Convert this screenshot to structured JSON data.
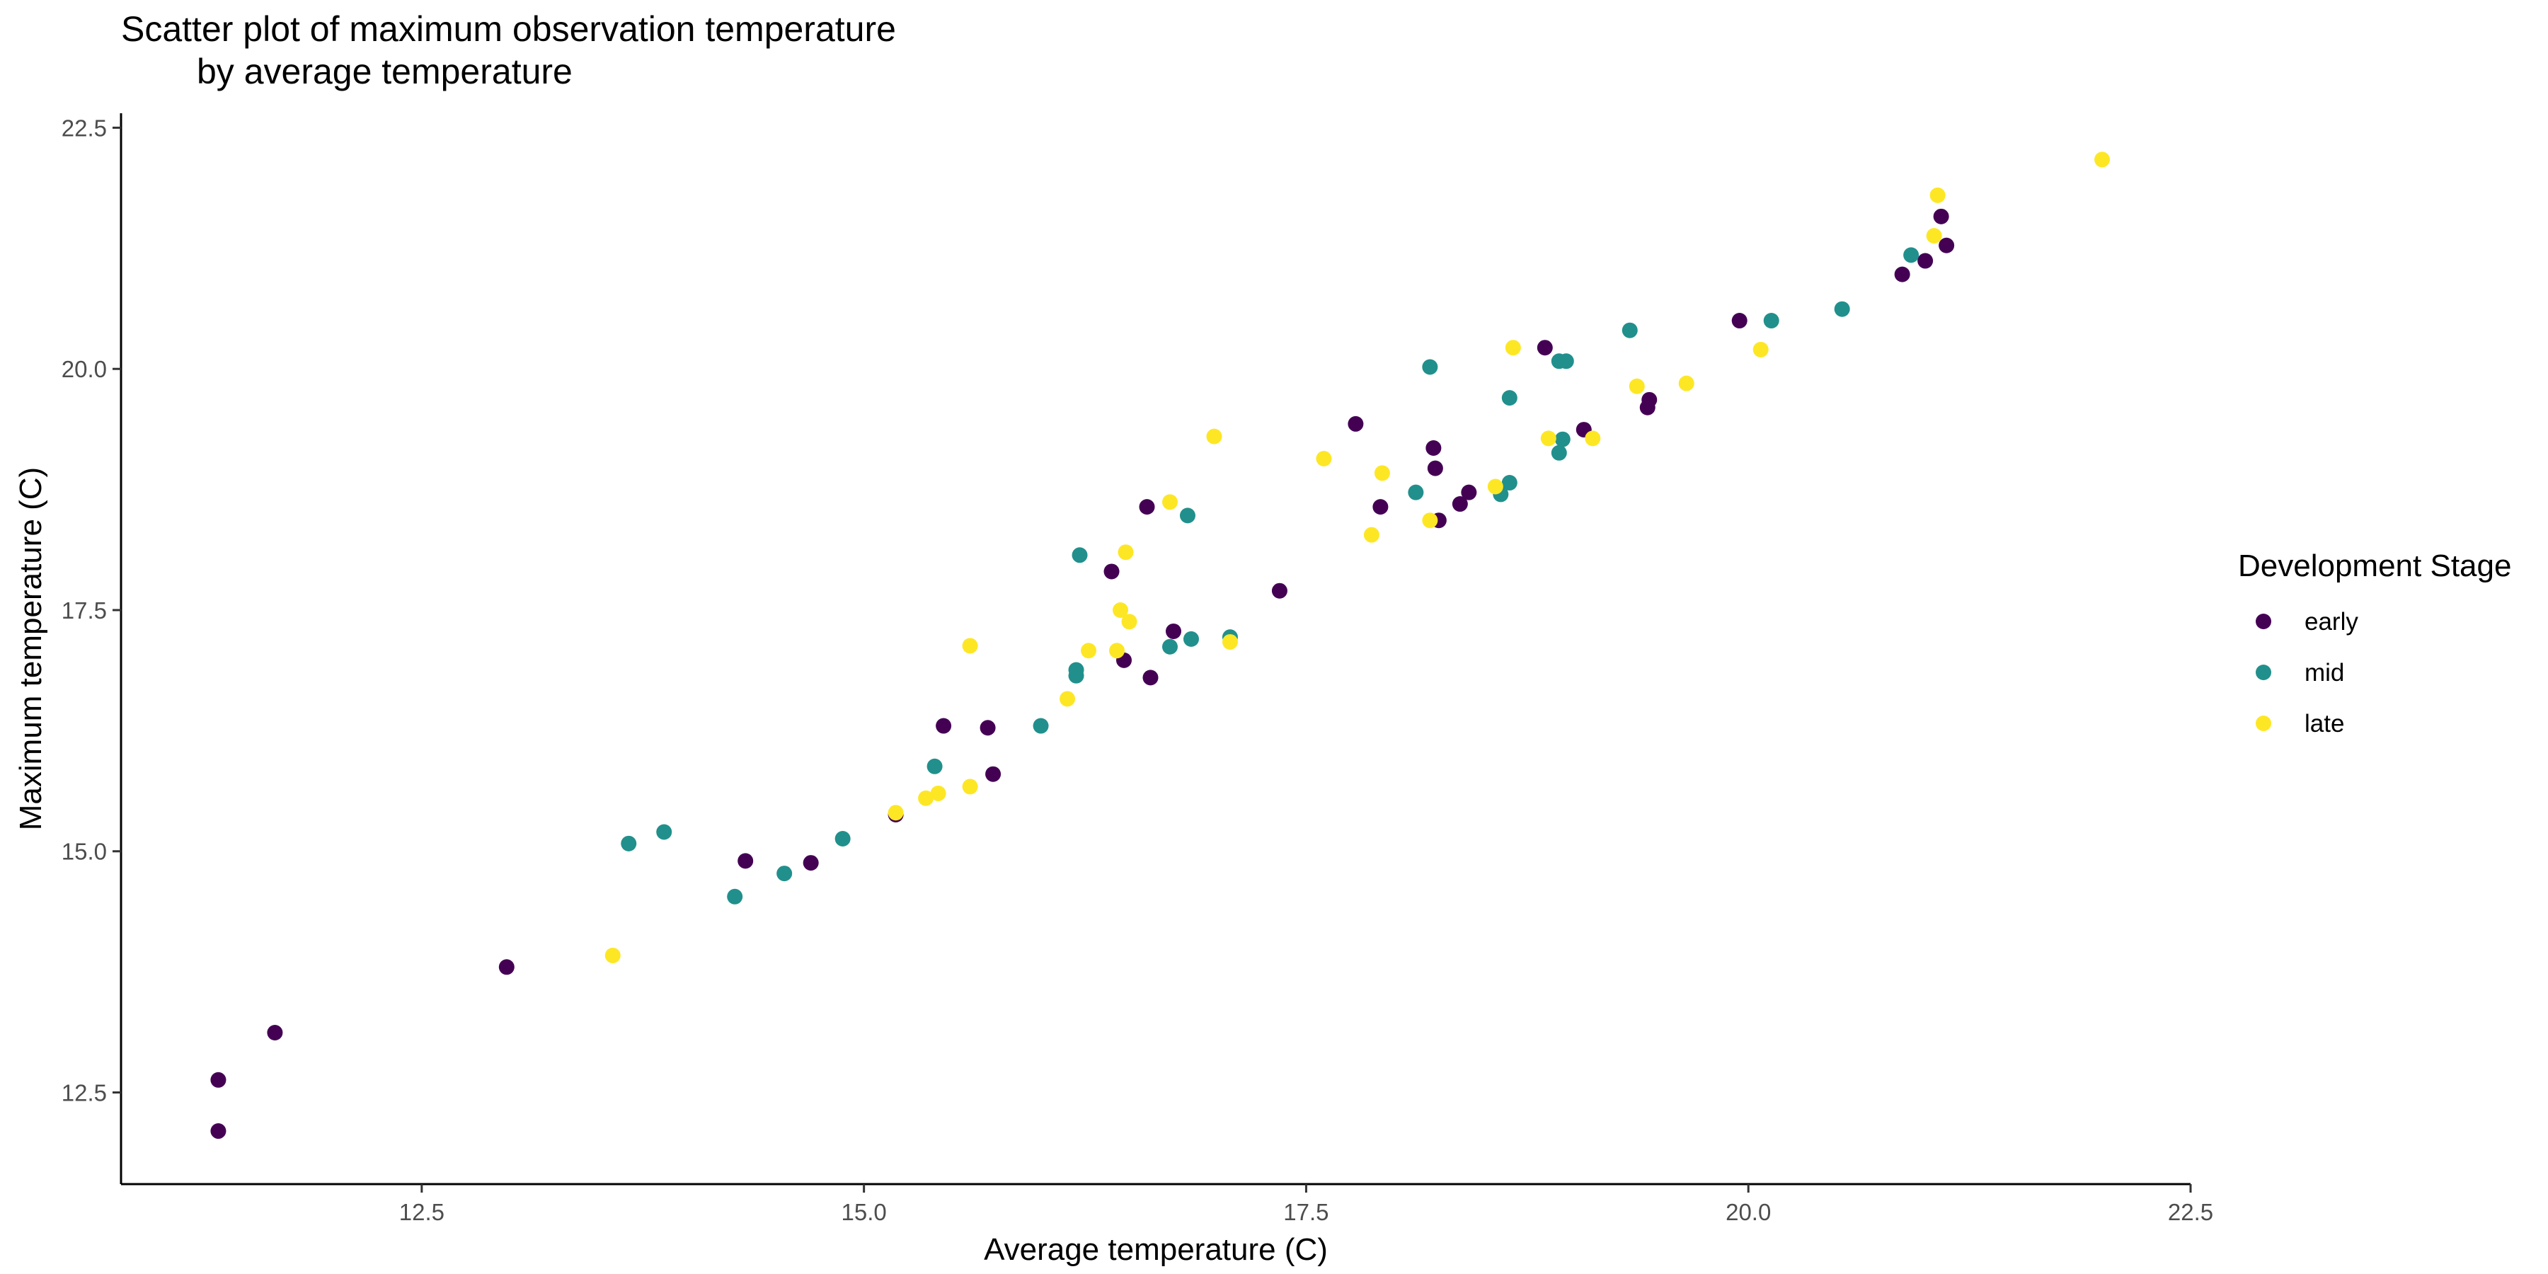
{
  "chart_data": {
    "type": "scatter",
    "title_line1": "Scatter plot of maximum observation temperature",
    "title_line2": "by average temperature",
    "xlabel": "Average temperature (C)",
    "ylabel": "Maximum temperature (C)",
    "xlim": [
      10.8,
      22.5
    ],
    "ylim": [
      11.55,
      22.65
    ],
    "xticks": [
      "12.5",
      "15.0",
      "17.5",
      "20.0",
      "22.5"
    ],
    "xtick_values": [
      12.5,
      15.0,
      17.5,
      20.0,
      22.5
    ],
    "yticks": [
      "12.5",
      "15.0",
      "17.5",
      "20.0",
      "22.5"
    ],
    "ytick_values": [
      12.5,
      15.0,
      17.5,
      20.0,
      22.5
    ],
    "grid": false,
    "legend": {
      "title": "Development Stage",
      "position": "right",
      "entries": [
        {
          "label": "early",
          "color": "#440154"
        },
        {
          "label": "mid",
          "color": "#21908C"
        },
        {
          "label": "late",
          "color": "#FDE725"
        }
      ]
    },
    "series": [
      {
        "name": "early",
        "color": "#440154",
        "points": [
          [
            11.35,
            12.1
          ],
          [
            11.35,
            12.63
          ],
          [
            11.67,
            13.12
          ],
          [
            12.98,
            13.8
          ],
          [
            14.33,
            14.9
          ],
          [
            14.7,
            14.88
          ],
          [
            15.18,
            15.38
          ],
          [
            15.45,
            16.3
          ],
          [
            15.7,
            16.28
          ],
          [
            15.73,
            15.8
          ],
          [
            16.4,
            17.9
          ],
          [
            16.47,
            16.98
          ],
          [
            16.6,
            18.57
          ],
          [
            16.62,
            16.8
          ],
          [
            16.75,
            17.28
          ],
          [
            17.35,
            17.7
          ],
          [
            17.78,
            19.43
          ],
          [
            17.92,
            18.57
          ],
          [
            18.23,
            18.97
          ],
          [
            18.22,
            19.18
          ],
          [
            18.25,
            18.43
          ],
          [
            18.37,
            18.6
          ],
          [
            18.42,
            18.72
          ],
          [
            18.85,
            20.22
          ],
          [
            19.07,
            19.37
          ],
          [
            19.43,
            19.6
          ],
          [
            19.44,
            19.68
          ],
          [
            19.95,
            20.5
          ],
          [
            20.87,
            20.98
          ],
          [
            21.0,
            21.12
          ],
          [
            21.09,
            21.58
          ],
          [
            21.12,
            21.28
          ]
        ]
      },
      {
        "name": "mid",
        "color": "#21908C",
        "points": [
          [
            13.67,
            15.08
          ],
          [
            13.87,
            15.2
          ],
          [
            14.27,
            14.53
          ],
          [
            14.55,
            14.77
          ],
          [
            14.88,
            15.13
          ],
          [
            15.4,
            15.88
          ],
          [
            16.0,
            16.3
          ],
          [
            16.2,
            16.88
          ],
          [
            16.2,
            16.82
          ],
          [
            16.22,
            18.07
          ],
          [
            16.73,
            17.12
          ],
          [
            16.83,
            18.48
          ],
          [
            16.85,
            17.2
          ],
          [
            17.07,
            17.22
          ],
          [
            18.12,
            18.72
          ],
          [
            18.2,
            20.02
          ],
          [
            18.6,
            18.7
          ],
          [
            18.65,
            18.82
          ],
          [
            18.65,
            19.7
          ],
          [
            18.93,
            20.08
          ],
          [
            18.95,
            19.27
          ],
          [
            18.93,
            19.13
          ],
          [
            18.97,
            20.08
          ],
          [
            19.33,
            20.4
          ],
          [
            20.13,
            20.5
          ],
          [
            20.53,
            20.62
          ],
          [
            20.92,
            21.18
          ]
        ]
      },
      {
        "name": "late",
        "color": "#FDE725",
        "points": [
          [
            13.58,
            13.92
          ],
          [
            15.18,
            15.4
          ],
          [
            15.35,
            15.55
          ],
          [
            15.42,
            15.6
          ],
          [
            15.6,
            15.67
          ],
          [
            15.6,
            17.13
          ],
          [
            16.15,
            16.58
          ],
          [
            16.27,
            17.08
          ],
          [
            16.43,
            17.08
          ],
          [
            16.45,
            17.5
          ],
          [
            16.48,
            18.1
          ],
          [
            16.5,
            17.38
          ],
          [
            16.73,
            18.62
          ],
          [
            16.98,
            19.3
          ],
          [
            17.07,
            17.17
          ],
          [
            17.6,
            19.07
          ],
          [
            17.87,
            18.28
          ],
          [
            17.93,
            18.92
          ],
          [
            18.2,
            18.43
          ],
          [
            18.57,
            18.78
          ],
          [
            18.67,
            20.22
          ],
          [
            18.87,
            19.28
          ],
          [
            19.12,
            19.28
          ],
          [
            19.37,
            19.82
          ],
          [
            19.65,
            19.85
          ],
          [
            20.07,
            20.2
          ],
          [
            21.05,
            21.38
          ],
          [
            21.07,
            21.8
          ],
          [
            22.0,
            22.17
          ]
        ]
      }
    ]
  }
}
